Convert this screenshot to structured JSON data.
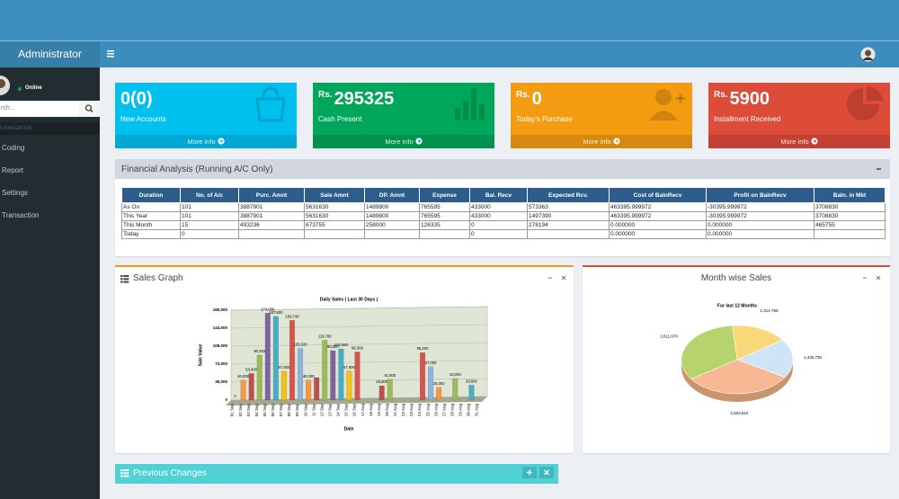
{
  "header": {
    "brand": "Administrator"
  },
  "sidebar": {
    "status": "Online",
    "search_placeholder": "rch...",
    "nav_heading": "N NAVIGATION",
    "menu": [
      "Coding",
      "Report",
      "Settings",
      "Transaction"
    ]
  },
  "info_boxes": [
    {
      "value": "0(0)",
      "label": "New Accounts",
      "link": "More info",
      "color": "#00c0ef"
    },
    {
      "prefix": "Rs.",
      "value": "295325",
      "label": "Cash Present",
      "link": "More info",
      "color": "#00a65a"
    },
    {
      "prefix": "Rs.",
      "value": "0",
      "label": "Today's Purchase",
      "link": "More info",
      "color": "#f39c12"
    },
    {
      "prefix": "Rs.",
      "value": "5900",
      "label": "Installment Received",
      "link": "More info",
      "color": "#dd4b39"
    }
  ],
  "financial": {
    "title": "Financial Analysis (Running A/C Only)",
    "columns": [
      "Duration",
      "No. of A/c",
      "Purc. Amnt",
      "Sale Amnt",
      "DP. Amnt",
      "Expense",
      "Bal. Recv",
      "Expected Rcv.",
      "Cost of BalnRecv",
      "Profit on BalnRecv",
      "Baln. in Mkt"
    ],
    "rows": [
      [
        "As On",
        "101",
        "3887901",
        "5631630",
        "1489800",
        "765595",
        "433000",
        "573363",
        "463395.999972",
        "-30395.999972",
        "3708830"
      ],
      [
        "This Year",
        "101",
        "3887901",
        "5631630",
        "1489800",
        "765595",
        "433000",
        "1497390",
        "463395.999972",
        "-30395.999972",
        "3708830"
      ],
      [
        "This Month",
        "15",
        "493236",
        "673755",
        "258000",
        "126335",
        "0",
        "278194",
        "0.000000",
        "0.000000",
        "465755"
      ],
      [
        "Today",
        "0",
        null,
        null,
        null,
        null,
        "0",
        null,
        "0.000000",
        "0.000000",
        null
      ]
    ]
  },
  "panels": {
    "sales": "Sales Graph",
    "monthly": "Month wise Sales",
    "changes": "Previous Changes"
  },
  "chart_data": [
    {
      "type": "bar",
      "title": "Daily Sales ( Last 30 Days )",
      "ylabel": "Sale Value",
      "xlabel": "Date",
      "categories": [
        "01 Sep",
        "02 Sep",
        "03 Sep",
        "04 Sep",
        "05 Sep",
        "06 Sep",
        "07 Sep",
        "08 Sep",
        "09 Sep",
        "10 Sep",
        "11 Sep",
        "12 Sep",
        "13 Sep",
        "14 Sep",
        "15 Sep",
        "16 Sep",
        "17 Aug",
        "18 Aug",
        "19 Aug",
        "20 Aug",
        "21 Aug",
        "22 Aug",
        "23 Aug",
        "24 Aug",
        "25 Aug",
        "26 Aug",
        "27 Aug",
        "28 Aug",
        "29 Aug",
        "30 Aug",
        "31 Aug"
      ],
      "values": [
        0,
        40000,
        53400,
        90263,
        174000,
        167500,
        57500,
        159740,
        103520,
        40000,
        45000,
        119760,
        99000,
        102580,
        57900,
        96360,
        0,
        0,
        28600,
        41800,
        0,
        0,
        0,
        95200,
        67000,
        25350,
        0,
        43000,
        0,
        29800,
        0
      ],
      "value_labels": [
        "0",
        "40,000",
        "53,400",
        "90,263",
        "174,000",
        "167,500",
        "57,500",
        "159,740",
        "103,520",
        "40,000",
        null,
        "119,760",
        "99,000",
        "102,580",
        "57,900",
        "96,360",
        null,
        null,
        "28,600",
        "41,800",
        null,
        null,
        null,
        "95,200",
        "67,000",
        "25,350",
        null,
        "43,000",
        null,
        "29,800",
        null
      ],
      "colors": [
        "#8db3e2",
        "#f79646",
        "#c0504d",
        "#9bbb59",
        "#8064a2",
        "#4bacc6",
        "#f4c20d",
        "#d9534f"
      ],
      "ylim": [
        0,
        180000
      ],
      "yticks": [
        0,
        {
          "value": 36000,
          "label": "36,000"
        },
        {
          "value": 72000,
          "label": "72,000"
        },
        {
          "value": 108000,
          "label": "108,000"
        },
        {
          "value": 144000,
          "label": "144,000"
        },
        {
          "value": 180000,
          "label": "180,000"
        }
      ],
      "grid": true
    },
    {
      "type": "pie",
      "title": "For last 12 Months",
      "values": [
        1314795,
        1445735,
        2503810,
        2611670
      ],
      "value_labels": [
        "1,314,795",
        "1,445,735",
        "2,503,810",
        "2,611,670"
      ],
      "colors": [
        "#f8d878",
        "#cfe5f7",
        "#f8b893",
        "#b7d36c"
      ]
    }
  ]
}
